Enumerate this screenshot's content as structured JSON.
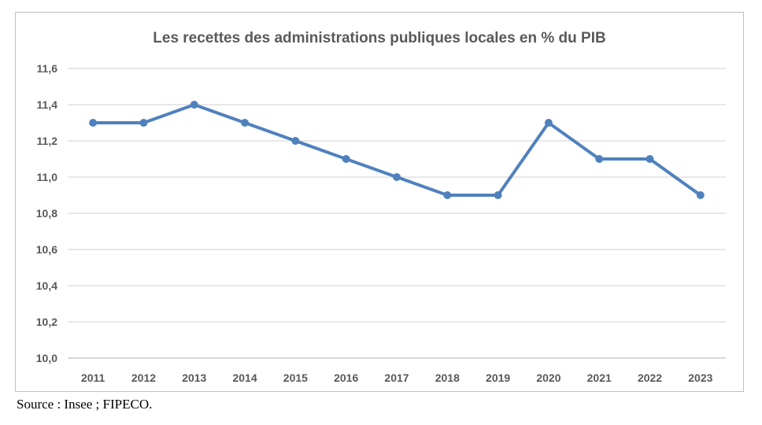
{
  "chart_data": {
    "type": "line",
    "title": "Les recettes des administrations publiques locales en % du PIB",
    "categories": [
      "2011",
      "2012",
      "2013",
      "2014",
      "2015",
      "2016",
      "2017",
      "2018",
      "2019",
      "2020",
      "2021",
      "2022",
      "2023"
    ],
    "series": [
      {
        "values": [
          11.3,
          11.3,
          11.4,
          11.3,
          11.2,
          11.1,
          11.0,
          10.9,
          10.9,
          11.3,
          11.1,
          11.1,
          10.9
        ],
        "color": "#4f81bd"
      }
    ],
    "ylim": [
      10.0,
      11.6
    ],
    "yticks": [
      "10,0",
      "10,2",
      "10,4",
      "10,6",
      "10,8",
      "11,0",
      "11,2",
      "11,4",
      "11,6"
    ],
    "grid": true,
    "legend": "none"
  },
  "source": "Source : Insee ; FIPECO."
}
